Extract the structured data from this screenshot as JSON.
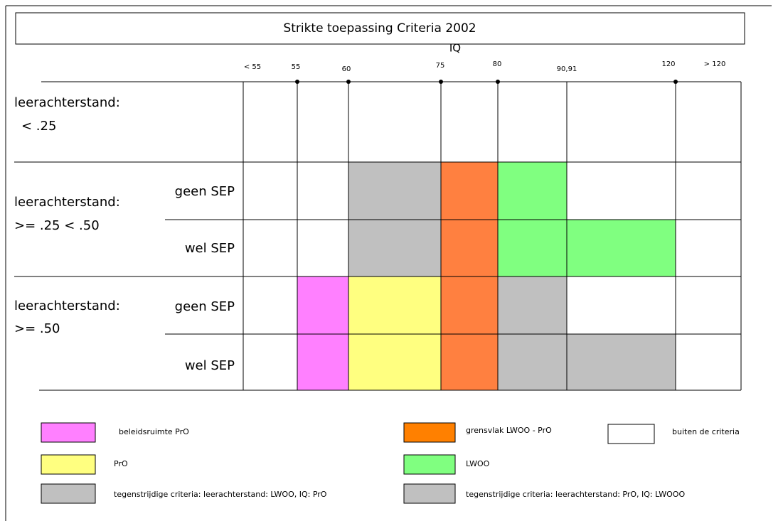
{
  "title": "Strikte toepassing Criteria 2002",
  "axis_label": "IQ",
  "iq_labels": [
    "< 55",
    "55",
    "60",
    "75",
    "80",
    "90,91",
    "120",
    "> 120"
  ],
  "groups": [
    {
      "label": "leerachterstand:",
      "range": "<  .25"
    },
    {
      "label": "leerachterstand:",
      "range": ">= .25 < .50",
      "rows": [
        {
          "label": "geen SEP",
          "cells": [
            null,
            null,
            "#c0c0c0",
            "#ff8040",
            "#80ff80",
            null,
            null
          ]
        },
        {
          "label": "wel SEP",
          "cells": [
            null,
            null,
            "#c0c0c0",
            "#ff8040",
            "#80ff80",
            "#80ff80",
            null
          ]
        }
      ]
    },
    {
      "label": "leerachterstand:",
      "range": ">= .50",
      "rows": [
        {
          "label": "geen SEP",
          "cells": [
            null,
            "#ff80ff",
            "#ffff80",
            "#ff8040",
            "#c0c0c0",
            null,
            null
          ]
        },
        {
          "label": "wel SEP",
          "cells": [
            null,
            "#ff80ff",
            "#ffff80",
            "#ff8040",
            "#c0c0c0",
            "#c0c0c0",
            null
          ]
        }
      ]
    }
  ],
  "legend": [
    {
      "label": "beleidsruimte PrO",
      "color": "#ff80ff"
    },
    {
      "label": "PrO",
      "color": "#ffff80"
    },
    {
      "label": "tegenstrijdige criteria: leerachterstand: LWOO, IQ: PrO",
      "color": "#c0c0c0"
    },
    {
      "label": "grensvlak LWOO - PrO",
      "color": "#ff8000"
    },
    {
      "label": "LWOO",
      "color": "#80ff80"
    },
    {
      "label": "tegenstrijdige criteria: leerachterstand: PrO, IQ: LWOOO",
      "color": "#c0c0c0"
    },
    {
      "label": "buiten de criteria",
      "color": "#ffffff"
    }
  ]
}
